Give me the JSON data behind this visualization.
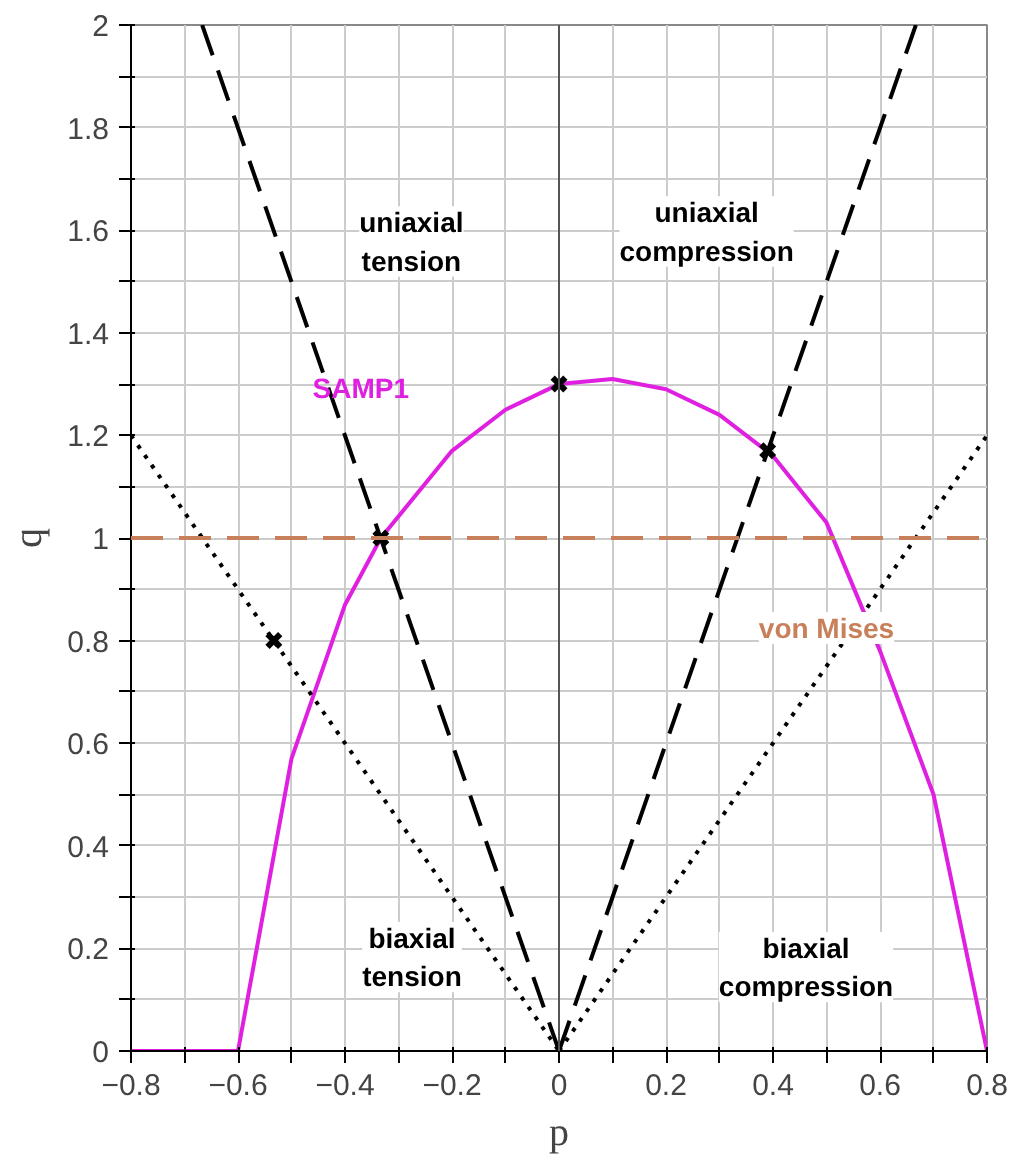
{
  "chart_data": {
    "type": "line",
    "xlabel": "p",
    "ylabel": "q",
    "xlim": [
      -0.8,
      0.8
    ],
    "ylim": [
      0,
      2
    ],
    "xticks": [
      {
        "value": -0.8,
        "label": "−0.8"
      },
      {
        "value": -0.7,
        "label": null
      },
      {
        "value": -0.6,
        "label": "−0.6"
      },
      {
        "value": -0.5,
        "label": null
      },
      {
        "value": -0.4,
        "label": "−0.4"
      },
      {
        "value": -0.3,
        "label": null
      },
      {
        "value": -0.2,
        "label": "−0.2"
      },
      {
        "value": -0.1,
        "label": null
      },
      0,
      {
        "value": 0.1,
        "label": null
      },
      0.2,
      {
        "value": 0.3,
        "label": null
      },
      0.4,
      {
        "value": 0.5,
        "label": null
      },
      0.6,
      {
        "value": 0.7,
        "label": null
      },
      0.8
    ],
    "yticks": [
      0,
      {
        "value": 0.1,
        "label": null
      },
      0.2,
      {
        "value": 0.3,
        "label": null
      },
      0.4,
      {
        "value": 0.5,
        "label": null
      },
      0.6,
      {
        "value": 0.7,
        "label": null
      },
      0.8,
      {
        "value": 0.9,
        "label": null
      },
      1,
      {
        "value": 1.1,
        "label": null
      },
      1.2,
      {
        "value": 1.3,
        "label": null
      },
      1.4,
      {
        "value": 1.5,
        "label": null
      },
      1.6,
      {
        "value": 1.7,
        "label": null
      },
      1.8,
      {
        "value": 1.9,
        "label": null
      },
      2
    ],
    "grid": true,
    "series": [
      {
        "name": "SAMP1",
        "color": "#e020e0",
        "line_style": "solid",
        "x": [
          -0.8,
          -0.6,
          -0.5,
          -0.4,
          -0.333,
          -0.2,
          -0.1,
          0,
          0.1,
          0.2,
          0.3,
          0.4,
          0.5,
          0.6,
          0.7,
          0.8
        ],
        "values": [
          0,
          0,
          0.57,
          0.87,
          1.0,
          1.17,
          1.25,
          1.3,
          1.31,
          1.29,
          1.24,
          1.16,
          1.03,
          0.78,
          0.5,
          0
        ]
      },
      {
        "name": "uniaxial tension",
        "color": "#000000",
        "line_style": "dashed",
        "x": [
          -0.667,
          0
        ],
        "values": [
          2,
          0
        ]
      },
      {
        "name": "uniaxial compression",
        "color": "#000000",
        "line_style": "dashed",
        "x": [
          0,
          0.667
        ],
        "values": [
          0,
          2
        ]
      },
      {
        "name": "biaxial tension",
        "color": "#000000",
        "line_style": "dotted",
        "x": [
          -0.8,
          0
        ],
        "values": [
          1.2,
          0
        ]
      },
      {
        "name": "biaxial compression",
        "color": "#000000",
        "line_style": "dotted",
        "x": [
          0,
          0.8
        ],
        "values": [
          0,
          1.2
        ]
      },
      {
        "type": "scatter",
        "marker": "cross",
        "color": "#000000",
        "x": [
          -0.533,
          -0.333,
          0,
          0.39
        ],
        "values": [
          0.8,
          1.0,
          1.3,
          1.17
        ]
      }
    ],
    "ref_lines": [
      {
        "axis": "y",
        "value": 1,
        "label": "von Mises",
        "color": "#c8805a",
        "line_style": "dashed"
      },
      {
        "axis": "x",
        "value": 0,
        "label": null,
        "color": "#555555",
        "line_style": "solid"
      }
    ]
  }
}
